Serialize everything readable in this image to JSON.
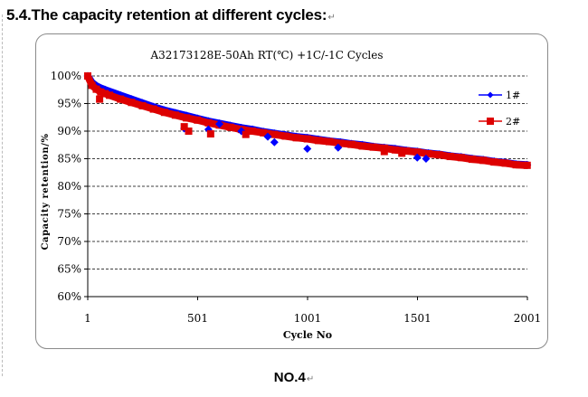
{
  "page": {
    "heading": "5.4.The capacity retention at different cycles:",
    "footer": "NO.4",
    "return_mark": "↵"
  },
  "chart_data": {
    "type": "line",
    "title": "A32173128E-50Ah    RT(℃) +1C/-1C  Cycles",
    "xlabel": "Cycle No",
    "ylabel": "Capacity retention/%",
    "xlim": [
      1,
      2001
    ],
    "ylim": [
      60,
      100
    ],
    "x_ticks": [
      1,
      501,
      1001,
      1501,
      2001
    ],
    "y_ticks": [
      "60%",
      "65%",
      "70%",
      "75%",
      "80%",
      "85%",
      "90%",
      "95%",
      "100%"
    ],
    "grid": "horizontal dashed",
    "legend_position": "right",
    "series": [
      {
        "name": "1#",
        "color": "#0000ff",
        "marker": "diamond",
        "x": [
          1,
          20,
          40,
          60,
          80,
          100,
          150,
          200,
          250,
          300,
          350,
          400,
          450,
          500,
          550,
          600,
          650,
          700,
          750,
          800,
          850,
          900,
          950,
          1000,
          1050,
          1100,
          1150,
          1200,
          1250,
          1300,
          1350,
          1400,
          1450,
          1500,
          1550,
          1600,
          1650,
          1700,
          1750,
          1800,
          1850,
          1900,
          1950,
          2000
        ],
        "y": [
          100,
          98.8,
          98.2,
          97.8,
          97.5,
          97.2,
          96.5,
          95.8,
          95.1,
          94.4,
          93.8,
          93.3,
          92.8,
          92.3,
          91.8,
          91.4,
          91.0,
          90.6,
          90.3,
          89.9,
          89.6,
          89.3,
          89.0,
          88.8,
          88.5,
          88.2,
          88.0,
          87.7,
          87.5,
          87.2,
          87.0,
          86.8,
          86.5,
          86.3,
          86.0,
          85.8,
          85.5,
          85.3,
          85.0,
          84.8,
          84.5,
          84.3,
          84.0,
          83.9
        ]
      },
      {
        "name": "2#",
        "color": "#dd0000",
        "marker": "square",
        "x": [
          1,
          20,
          40,
          60,
          80,
          100,
          150,
          200,
          250,
          300,
          350,
          400,
          450,
          500,
          550,
          600,
          650,
          700,
          750,
          800,
          850,
          900,
          950,
          1000,
          1050,
          1100,
          1150,
          1200,
          1250,
          1300,
          1350,
          1400,
          1450,
          1500,
          1550,
          1600,
          1650,
          1700,
          1750,
          1800,
          1850,
          1900,
          1950,
          2000
        ],
        "y": [
          100,
          98.3,
          97.6,
          97.1,
          96.8,
          96.5,
          95.8,
          95.2,
          94.6,
          94.0,
          93.4,
          92.9,
          92.4,
          92.0,
          91.5,
          91.1,
          90.7,
          90.3,
          90.0,
          89.7,
          89.4,
          89.1,
          88.8,
          88.6,
          88.3,
          88.1,
          87.8,
          87.6,
          87.3,
          87.1,
          86.9,
          86.6,
          86.4,
          86.2,
          85.9,
          85.7,
          85.4,
          85.2,
          84.9,
          84.7,
          84.4,
          84.2,
          83.9,
          83.8
        ]
      }
    ],
    "outliers": [
      {
        "series": "1#",
        "x": 440,
        "y": 90.5
      },
      {
        "series": "1#",
        "x": 550,
        "y": 90.3
      },
      {
        "series": "1#",
        "x": 600,
        "y": 91.3
      },
      {
        "series": "1#",
        "x": 700,
        "y": 90.0
      },
      {
        "series": "1#",
        "x": 820,
        "y": 89.0
      },
      {
        "series": "1#",
        "x": 850,
        "y": 88.0
      },
      {
        "series": "1#",
        "x": 1000,
        "y": 86.8
      },
      {
        "series": "1#",
        "x": 1140,
        "y": 87.0
      },
      {
        "series": "1#",
        "x": 1500,
        "y": 85.2
      },
      {
        "series": "1#",
        "x": 1540,
        "y": 85.0
      },
      {
        "series": "2#",
        "x": 55,
        "y": 95.8
      },
      {
        "series": "2#",
        "x": 440,
        "y": 90.8
      },
      {
        "series": "2#",
        "x": 460,
        "y": 90.0
      },
      {
        "series": "2#",
        "x": 560,
        "y": 89.5
      },
      {
        "series": "2#",
        "x": 720,
        "y": 89.4
      },
      {
        "series": "2#",
        "x": 1350,
        "y": 86.3
      },
      {
        "series": "2#",
        "x": 1430,
        "y": 86.0
      }
    ]
  }
}
